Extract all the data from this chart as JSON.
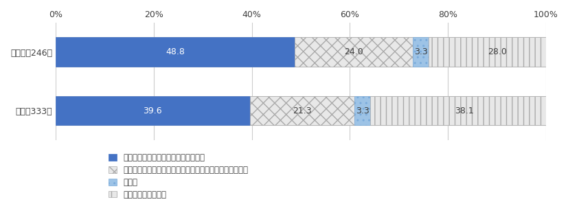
{
  "categories": [
    "被害者（246）",
    "一般（333）"
  ],
  "series": [
    {
      "label": "医療機関に通った（訪問診療を含む）",
      "values": [
        48.8,
        39.6
      ],
      "color": "#4472C4",
      "hatch": null,
      "edgecolor": "#4472C4"
    },
    {
      "label": "医療機関には通っていないが、市販の薬を服用、湿布した",
      "values": [
        24.0,
        21.3
      ],
      "color": "#E8E8E8",
      "hatch": "xx",
      "edgecolor": "#AAAAAA"
    },
    {
      "label": "その他",
      "values": [
        3.3,
        3.3
      ],
      "color": "#9DC3E6",
      "hatch": "..",
      "edgecolor": "#7AABDB"
    },
    {
      "label": "特に何もしていない",
      "values": [
        28.0,
        38.1
      ],
      "color": "#E8E8E8",
      "hatch": "||",
      "edgecolor": "#AAAAAA"
    }
  ],
  "xlim": [
    0,
    100
  ],
  "xticks": [
    0,
    20,
    40,
    60,
    80,
    100
  ],
  "xticklabels": [
    "0%",
    "20%",
    "40%",
    "60%",
    "80%",
    "100%"
  ],
  "bar_height": 0.5,
  "figsize": [
    8.28,
    3.1
  ],
  "dpi": 100,
  "bg_color": "#FFFFFF",
  "text_color": "#404040",
  "spine_color": "#BBBBBB",
  "grid_color": "#CCCCCC",
  "legend_fontsize": 8.5,
  "tick_fontsize": 9,
  "label_fontsize": 9
}
